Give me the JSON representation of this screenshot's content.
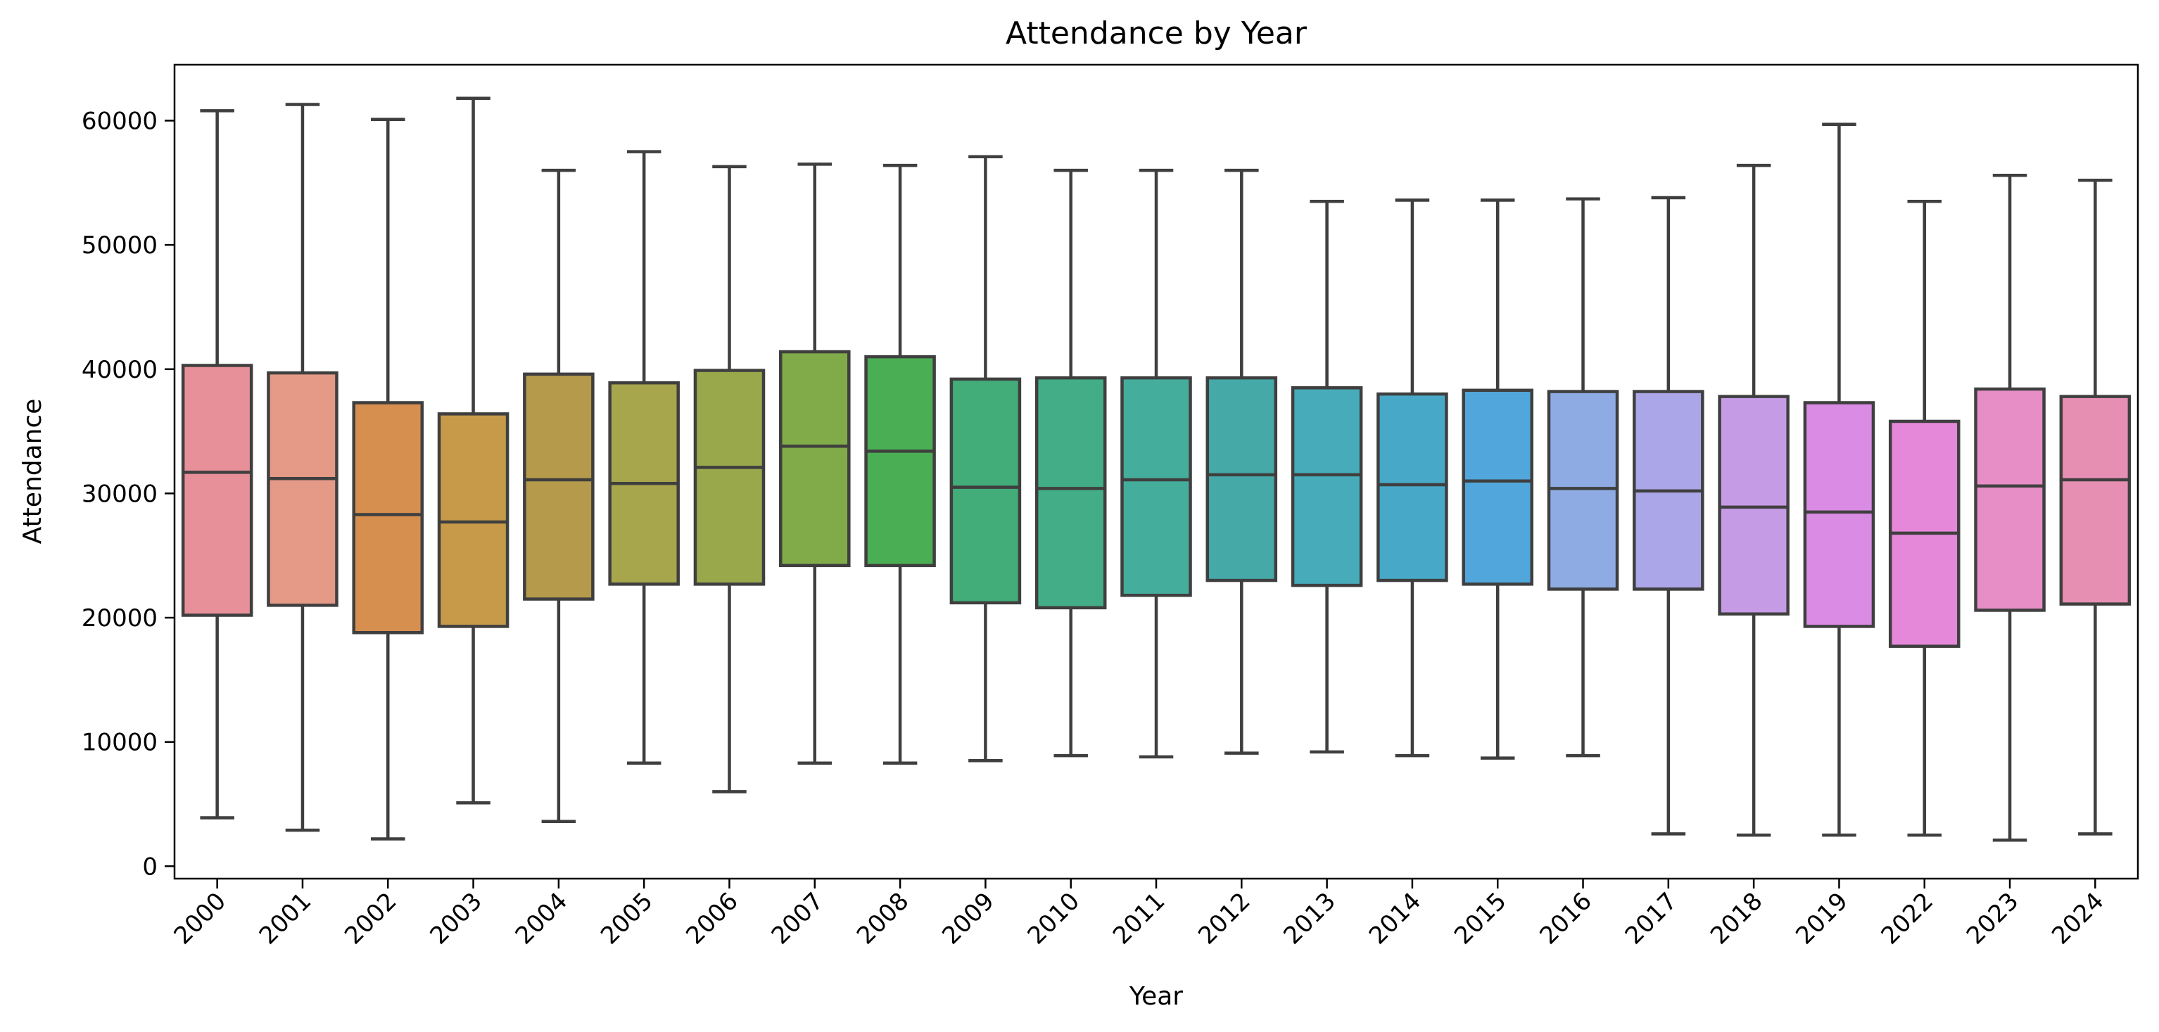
{
  "chart_data": {
    "type": "box",
    "title": "Attendance by Year",
    "xlabel": "Year",
    "ylabel": "Attendance",
    "ylim": [
      -1000,
      64500
    ],
    "yticks": [
      0,
      10000,
      20000,
      30000,
      40000,
      50000,
      60000
    ],
    "grid": false,
    "legend": "none",
    "categories": [
      "2000",
      "2001",
      "2002",
      "2003",
      "2004",
      "2005",
      "2006",
      "2007",
      "2008",
      "2009",
      "2010",
      "2011",
      "2012",
      "2013",
      "2014",
      "2015",
      "2016",
      "2017",
      "2018",
      "2019",
      "2022",
      "2023",
      "2024"
    ],
    "colors": [
      "#e8909a",
      "#e59a88",
      "#d78f4f",
      "#c69a48",
      "#b59a4b",
      "#a8a64c",
      "#9aa84c",
      "#80ab48",
      "#4aaf54",
      "#42ad79",
      "#42ad86",
      "#45ad9b",
      "#45a9a8",
      "#47abb9",
      "#47a9c7",
      "#51a7db",
      "#8eabe3",
      "#aba6e8",
      "#c69be6",
      "#da8be4",
      "#e688da",
      "#e78ec7",
      "#e68fb3"
    ],
    "edge_color": "#3f3f3f",
    "boxes": [
      {
        "whisker_low": 3900,
        "q1": 20200,
        "median": 31700,
        "q3": 40300,
        "whisker_high": 60800
      },
      {
        "whisker_low": 2900,
        "q1": 21000,
        "median": 31200,
        "q3": 39700,
        "whisker_high": 61300
      },
      {
        "whisker_low": 2200,
        "q1": 18800,
        "median": 28300,
        "q3": 37300,
        "whisker_high": 60100
      },
      {
        "whisker_low": 5100,
        "q1": 19300,
        "median": 27700,
        "q3": 36400,
        "whisker_high": 61800
      },
      {
        "whisker_low": 3600,
        "q1": 21500,
        "median": 31100,
        "q3": 39600,
        "whisker_high": 56000
      },
      {
        "whisker_low": 8300,
        "q1": 22700,
        "median": 30800,
        "q3": 38900,
        "whisker_high": 57500
      },
      {
        "whisker_low": 6000,
        "q1": 22700,
        "median": 32100,
        "q3": 39900,
        "whisker_high": 56300
      },
      {
        "whisker_low": 8300,
        "q1": 24200,
        "median": 33800,
        "q3": 41400,
        "whisker_high": 56500
      },
      {
        "whisker_low": 8300,
        "q1": 24200,
        "median": 33400,
        "q3": 41000,
        "whisker_high": 56400
      },
      {
        "whisker_low": 8500,
        "q1": 21200,
        "median": 30500,
        "q3": 39200,
        "whisker_high": 57100
      },
      {
        "whisker_low": 8900,
        "q1": 20800,
        "median": 30400,
        "q3": 39300,
        "whisker_high": 56000
      },
      {
        "whisker_low": 8800,
        "q1": 21800,
        "median": 31100,
        "q3": 39300,
        "whisker_high": 56000
      },
      {
        "whisker_low": 9100,
        "q1": 23000,
        "median": 31500,
        "q3": 39300,
        "whisker_high": 56000
      },
      {
        "whisker_low": 9200,
        "q1": 22600,
        "median": 31500,
        "q3": 38500,
        "whisker_high": 53500
      },
      {
        "whisker_low": 8900,
        "q1": 23000,
        "median": 30700,
        "q3": 38000,
        "whisker_high": 53600
      },
      {
        "whisker_low": 8700,
        "q1": 22700,
        "median": 31000,
        "q3": 38300,
        "whisker_high": 53600
      },
      {
        "whisker_low": 8900,
        "q1": 22300,
        "median": 30400,
        "q3": 38200,
        "whisker_high": 53700
      },
      {
        "whisker_low": 2600,
        "q1": 22300,
        "median": 30200,
        "q3": 38200,
        "whisker_high": 53800
      },
      {
        "whisker_low": 2500,
        "q1": 20300,
        "median": 28900,
        "q3": 37800,
        "whisker_high": 56400
      },
      {
        "whisker_low": 2500,
        "q1": 19300,
        "median": 28500,
        "q3": 37300,
        "whisker_high": 59700
      },
      {
        "whisker_low": 2500,
        "q1": 17700,
        "median": 26800,
        "q3": 35800,
        "whisker_high": 53500
      },
      {
        "whisker_low": 2100,
        "q1": 20600,
        "median": 30600,
        "q3": 38400,
        "whisker_high": 55600
      },
      {
        "whisker_low": 2600,
        "q1": 21100,
        "median": 31100,
        "q3": 37800,
        "whisker_high": 55200
      }
    ]
  }
}
